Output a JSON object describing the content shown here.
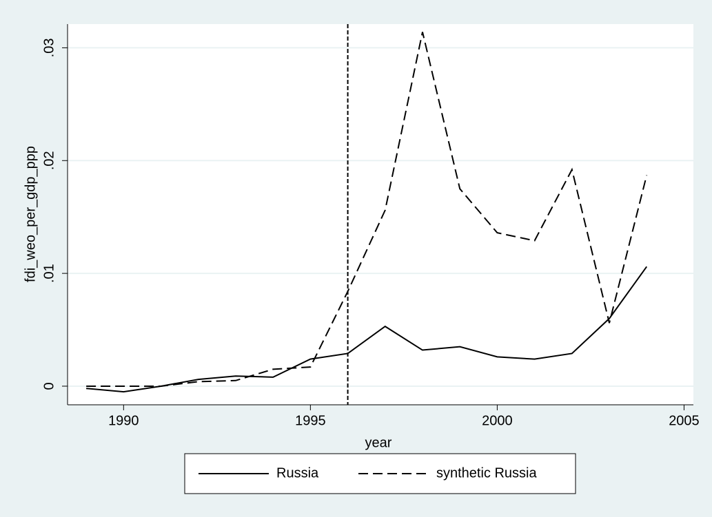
{
  "chart_data": {
    "type": "line",
    "x_label": "year",
    "y_label": "fdi_weo_per_gdp_ppp",
    "x": [
      1989,
      1990,
      1991,
      1992,
      1993,
      1994,
      1995,
      1996,
      1997,
      1998,
      1999,
      2000,
      2001,
      2002,
      2003,
      2004
    ],
    "series": [
      {
        "name": "Russia",
        "color": "#000000",
        "line_style": "solid",
        "values": [
          -0.0002,
          -0.0005,
          0.0,
          0.0006,
          0.0009,
          0.0008,
          0.0024,
          0.0029,
          0.0053,
          0.0032,
          0.0035,
          0.0026,
          0.0024,
          0.0029,
          0.006,
          0.0106
        ]
      },
      {
        "name": "synthetic Russia",
        "color": "#000000",
        "line_style": "dashed",
        "values": [
          0,
          0,
          0,
          0.0004,
          0.0005,
          0.0015,
          0.0017,
          0.0084,
          0.0156,
          0.0314,
          0.0175,
          0.0136,
          0.0129,
          0.0192,
          0.0056,
          0.0187
        ]
      }
    ],
    "xline": 1996,
    "xlim": [
      1988.5,
      2005.25
    ],
    "xticks": [
      1990,
      1995,
      2000,
      2005
    ],
    "ylim": [
      -0.00165,
      0.0321
    ],
    "yticks": [
      0,
      {
        "value": 0.01,
        "label": ".01"
      },
      {
        "value": 0.02,
        "label": ".02"
      },
      {
        "value": 0.03,
        "label": ".03"
      }
    ],
    "grid": true,
    "legend": "bottom"
  }
}
